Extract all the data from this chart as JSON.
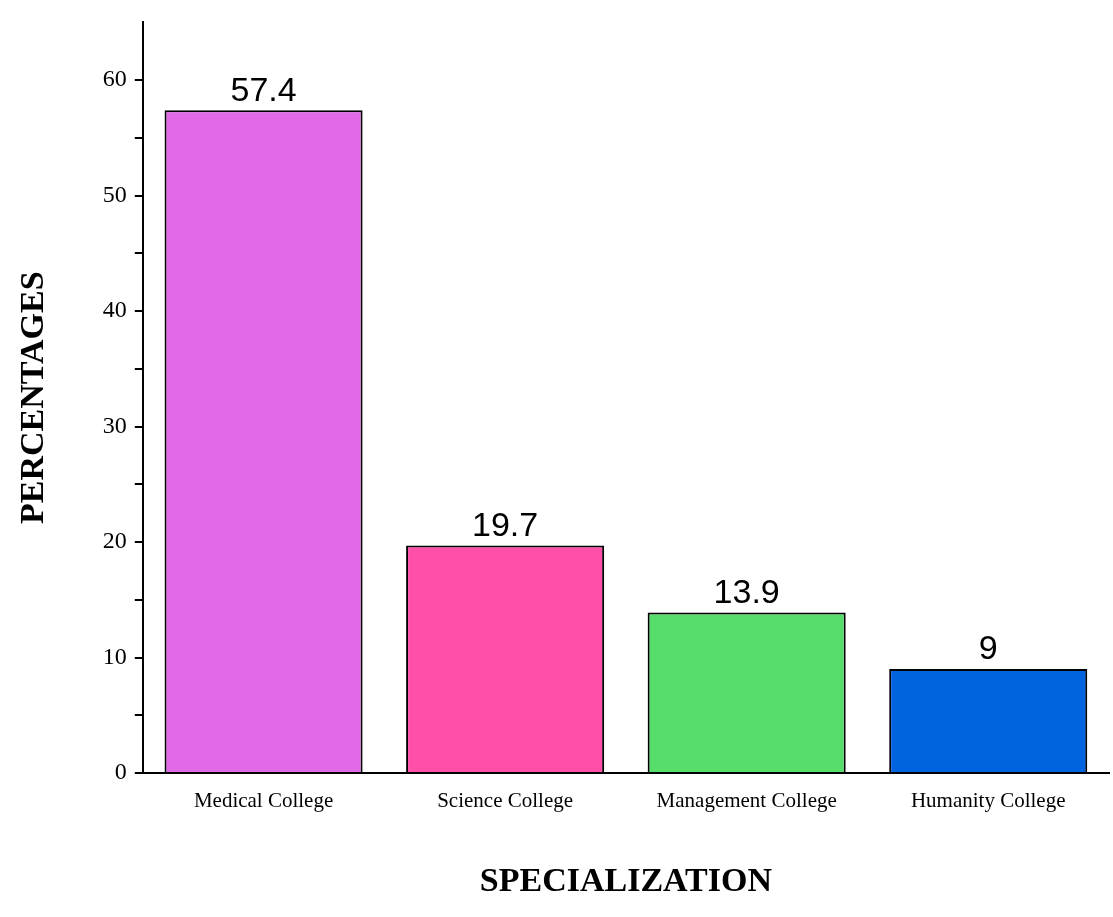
{
  "chart_data": {
    "type": "bar",
    "xlabel": "SPECIALIZATION",
    "ylabel": "PERCENTAGES",
    "categories": [
      "Medical College",
      "Science College",
      "Management College",
      "Humanity College"
    ],
    "values": [
      57.4,
      19.7,
      13.9,
      9
    ],
    "colors": [
      "#e06ae6",
      "#ff4fa8",
      "#57dd6a",
      "#0063e0"
    ],
    "ylim": [
      0,
      65
    ],
    "yticks": [
      0,
      {
        "value": 5,
        "label": null
      },
      10,
      {
        "value": 15,
        "label": null
      },
      20,
      {
        "value": 25,
        "label": null
      },
      30,
      {
        "value": 35,
        "label": null
      },
      40,
      {
        "value": 45,
        "label": null
      },
      50,
      {
        "value": 55,
        "label": null
      },
      60
    ],
    "data_labels": true
  }
}
